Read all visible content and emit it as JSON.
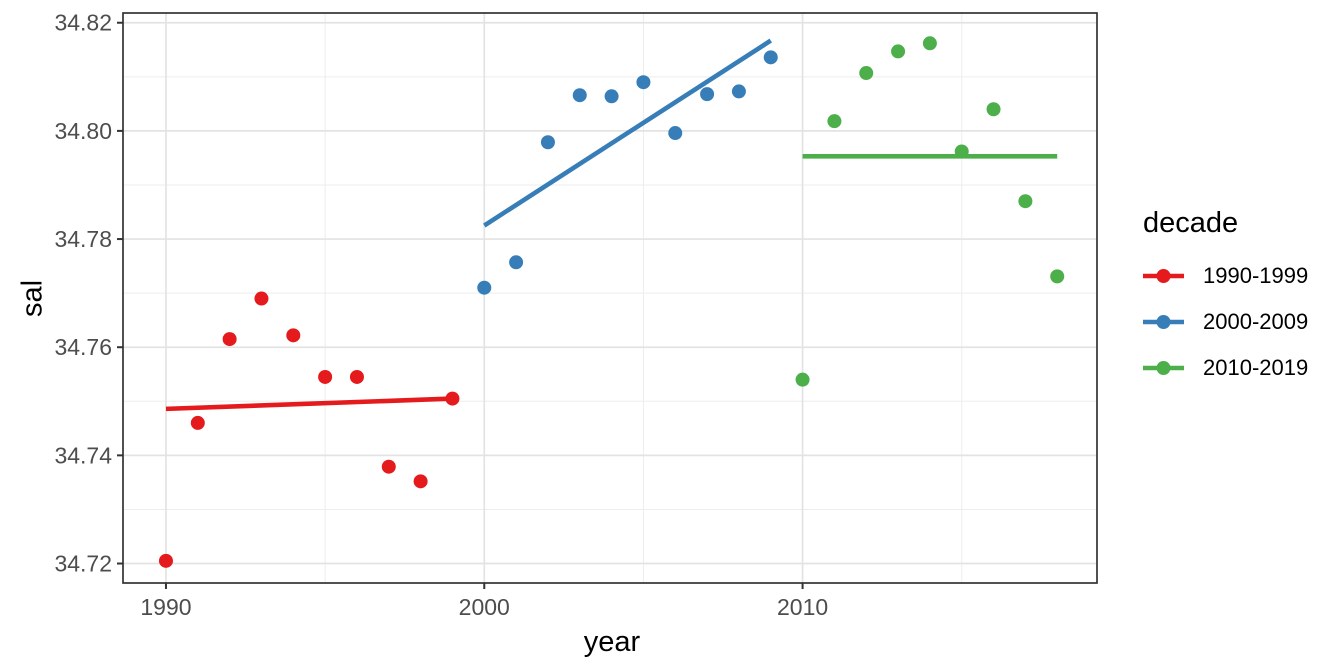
{
  "chart_data": {
    "type": "scatter",
    "title": "",
    "xlabel": "year",
    "ylabel": "sal",
    "legend_title": "decade",
    "legend_position": "right",
    "grid": true,
    "xlim": [
      1988.65,
      2019.25
    ],
    "ylim": [
      34.7164,
      34.8218
    ],
    "x_ticks": {
      "values": [
        1990,
        2000,
        2010
      ],
      "labels": [
        "1990",
        "2000",
        "2010"
      ],
      "minor": [
        1995,
        2005,
        2015
      ]
    },
    "y_ticks": {
      "values": [
        34.72,
        34.74,
        34.76,
        34.78,
        34.8,
        34.82
      ],
      "labels": [
        "34.72",
        "34.74",
        "34.76",
        "34.78",
        "34.80",
        "34.82"
      ],
      "minor": [
        34.73,
        34.75,
        34.77,
        34.79,
        34.81
      ]
    },
    "series": [
      {
        "name": "1990-1999",
        "color": "#E41A1C",
        "x": [
          1990,
          1991,
          1992,
          1993,
          1994,
          1995,
          1996,
          1997,
          1998,
          1999
        ],
        "y": [
          34.7205,
          34.746,
          34.7615,
          34.769,
          34.7622,
          34.7545,
          34.7545,
          34.7379,
          34.7352,
          34.7505
        ],
        "trend": {
          "x1": 1990,
          "y1": 34.7486,
          "x2": 1999,
          "y2": 34.7505
        }
      },
      {
        "name": "2000-2009",
        "color": "#377EB8",
        "x": [
          2000,
          2001,
          2002,
          2003,
          2004,
          2005,
          2006,
          2007,
          2008,
          2009
        ],
        "y": [
          34.771,
          34.7757,
          34.7979,
          34.8066,
          34.8064,
          34.809,
          34.7996,
          34.8068,
          34.8073,
          34.8136
        ],
        "trend": {
          "x1": 2000,
          "y1": 34.7825,
          "x2": 2009,
          "y2": 34.8167
        }
      },
      {
        "name": "2010-2019",
        "color": "#4DAF4A",
        "x": [
          2010,
          2011,
          2012,
          2013,
          2014,
          2015,
          2016,
          2017,
          2018
        ],
        "y": [
          34.754,
          34.8018,
          34.8107,
          34.8147,
          34.8162,
          34.7962,
          34.804,
          34.787,
          34.7731
        ],
        "trend": {
          "x1": 2010,
          "y1": 34.7953,
          "x2": 2018,
          "y2": 34.7953
        }
      }
    ],
    "style": {
      "background": "#FFFFFF",
      "grid_major_color": "#E3E3E3",
      "grid_minor_color": "#EDEDED",
      "panel_border_color": "#333333",
      "tick_color": "#333333",
      "tick_label_color": "#4D4D4D",
      "axis_title_color": "#000000",
      "point_radius": 7,
      "trend_line_width": 4.6
    }
  }
}
